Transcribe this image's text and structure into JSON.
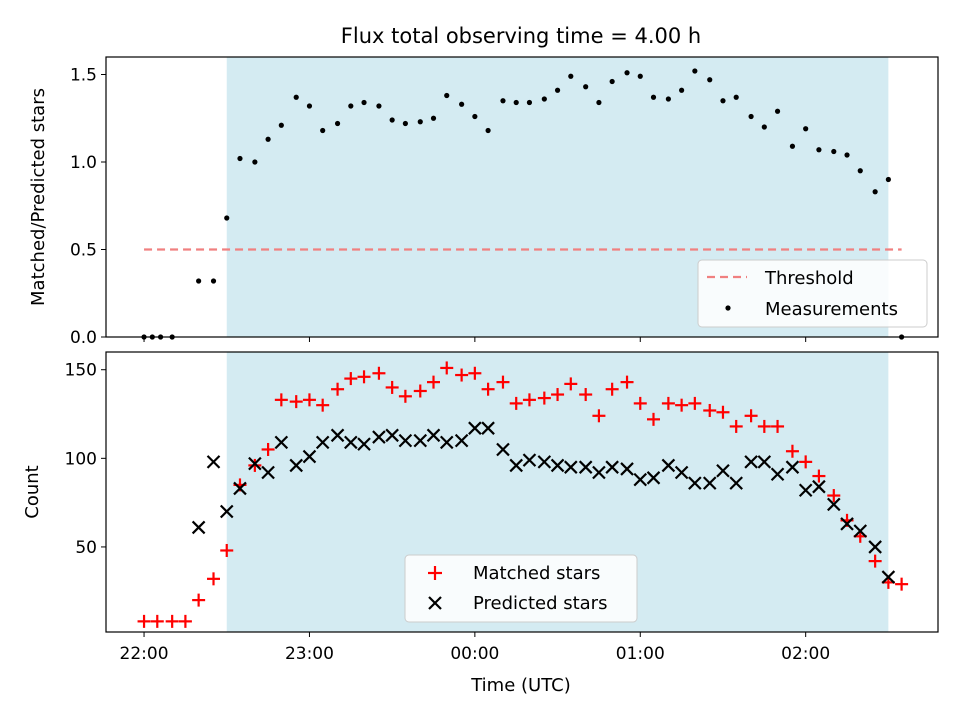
{
  "chart_data": {
    "title": "Flux total observing time = 4.00 h",
    "xlabel": "Time (UTC)",
    "x_units": "hours UTC",
    "x_ticks": [
      {
        "value": 22.0,
        "label": "22:00"
      },
      {
        "value": 23.0,
        "label": "23:00"
      },
      {
        "value": 24.0,
        "label": "00:00"
      },
      {
        "value": 25.0,
        "label": "01:00"
      },
      {
        "value": 26.0,
        "label": "02:00"
      }
    ],
    "xlim": [
      21.77,
      26.8
    ],
    "observing_window": {
      "start": 22.5,
      "end": 26.5,
      "color": "#add8e6"
    },
    "panels": [
      {
        "type": "scatter",
        "ylabel": "Matched/Predicted stars",
        "ylim": [
          0,
          1.6
        ],
        "y_ticks": [
          "0.0",
          "0.5",
          "1.0",
          "1.5"
        ],
        "y_tick_values": [
          0.0,
          0.5,
          1.0,
          1.5
        ],
        "threshold": {
          "name": "Threshold",
          "value": 0.5,
          "x_range": [
            22.0,
            26.58
          ],
          "color": "#f08080"
        },
        "legend": {
          "position": "lower-right",
          "entries": [
            "Threshold",
            "Measurements"
          ]
        },
        "series": [
          {
            "name": "Measurements",
            "color": "#000000",
            "marker": "dot",
            "points": [
              [
                22.0,
                0.0
              ],
              [
                22.05,
                0.0
              ],
              [
                22.1,
                0.0
              ],
              [
                22.17,
                0.0
              ],
              [
                22.33,
                0.32
              ],
              [
                22.42,
                0.32
              ],
              [
                22.5,
                0.68
              ],
              [
                22.58,
                1.02
              ],
              [
                22.67,
                1.0
              ],
              [
                22.75,
                1.13
              ],
              [
                22.83,
                1.21
              ],
              [
                22.92,
                1.37
              ],
              [
                23.0,
                1.32
              ],
              [
                23.08,
                1.18
              ],
              [
                23.17,
                1.22
              ],
              [
                23.25,
                1.32
              ],
              [
                23.33,
                1.34
              ],
              [
                23.42,
                1.32
              ],
              [
                23.5,
                1.24
              ],
              [
                23.58,
                1.22
              ],
              [
                23.67,
                1.23
              ],
              [
                23.75,
                1.25
              ],
              [
                23.83,
                1.38
              ],
              [
                23.92,
                1.33
              ],
              [
                24.0,
                1.26
              ],
              [
                24.08,
                1.18
              ],
              [
                24.17,
                1.35
              ],
              [
                24.25,
                1.34
              ],
              [
                24.33,
                1.34
              ],
              [
                24.42,
                1.36
              ],
              [
                24.5,
                1.41
              ],
              [
                24.58,
                1.49
              ],
              [
                24.67,
                1.43
              ],
              [
                24.75,
                1.34
              ],
              [
                24.83,
                1.46
              ],
              [
                24.92,
                1.51
              ],
              [
                25.0,
                1.49
              ],
              [
                25.08,
                1.37
              ],
              [
                25.17,
                1.36
              ],
              [
                25.25,
                1.41
              ],
              [
                25.33,
                1.52
              ],
              [
                25.42,
                1.47
              ],
              [
                25.5,
                1.35
              ],
              [
                25.58,
                1.37
              ],
              [
                25.67,
                1.26
              ],
              [
                25.75,
                1.2
              ],
              [
                25.83,
                1.29
              ],
              [
                25.92,
                1.09
              ],
              [
                26.0,
                1.19
              ],
              [
                26.08,
                1.07
              ],
              [
                26.17,
                1.06
              ],
              [
                26.25,
                1.04
              ],
              [
                26.33,
                0.95
              ],
              [
                26.42,
                0.83
              ],
              [
                26.5,
                0.9
              ],
              [
                26.58,
                0.0
              ]
            ]
          }
        ]
      },
      {
        "type": "scatter",
        "ylabel": "Count",
        "ylim": [
          2,
          160
        ],
        "y_ticks": [
          "50",
          "100",
          "150"
        ],
        "y_tick_values": [
          50,
          100,
          150
        ],
        "legend": {
          "position": "lower-center",
          "entries": [
            "Matched stars",
            "Predicted stars"
          ]
        },
        "series": [
          {
            "name": "Matched stars",
            "color": "#ff0000",
            "marker": "plus",
            "points": [
              [
                22.0,
                8
              ],
              [
                22.08,
                8
              ],
              [
                22.17,
                8
              ],
              [
                22.25,
                8
              ],
              [
                22.33,
                20
              ],
              [
                22.42,
                32
              ],
              [
                22.5,
                48
              ],
              [
                22.58,
                85
              ],
              [
                22.67,
                96
              ],
              [
                22.75,
                105
              ],
              [
                22.83,
                133
              ],
              [
                22.92,
                132
              ],
              [
                23.0,
                133
              ],
              [
                23.08,
                130
              ],
              [
                23.17,
                139
              ],
              [
                23.25,
                145
              ],
              [
                23.33,
                146
              ],
              [
                23.42,
                148
              ],
              [
                23.5,
                140
              ],
              [
                23.58,
                135
              ],
              [
                23.67,
                138
              ],
              [
                23.75,
                143
              ],
              [
                23.83,
                151
              ],
              [
                23.92,
                147
              ],
              [
                24.0,
                148
              ],
              [
                24.08,
                139
              ],
              [
                24.17,
                143
              ],
              [
                24.25,
                131
              ],
              [
                24.33,
                133
              ],
              [
                24.42,
                134
              ],
              [
                24.5,
                136
              ],
              [
                24.58,
                142
              ],
              [
                24.67,
                136
              ],
              [
                24.75,
                124
              ],
              [
                24.83,
                139
              ],
              [
                24.92,
                143
              ],
              [
                25.0,
                131
              ],
              [
                25.08,
                122
              ],
              [
                25.17,
                131
              ],
              [
                25.25,
                130
              ],
              [
                25.33,
                131
              ],
              [
                25.42,
                127
              ],
              [
                25.5,
                126
              ],
              [
                25.58,
                118
              ],
              [
                25.67,
                124
              ],
              [
                25.75,
                118
              ],
              [
                25.83,
                118
              ],
              [
                25.92,
                104
              ],
              [
                26.0,
                98
              ],
              [
                26.08,
                90
              ],
              [
                26.17,
                79
              ],
              [
                26.25,
                65
              ],
              [
                26.33,
                56
              ],
              [
                26.42,
                42
              ],
              [
                26.5,
                30
              ],
              [
                26.58,
                29
              ]
            ]
          },
          {
            "name": "Predicted stars",
            "color": "#000000",
            "marker": "x",
            "points": [
              [
                22.33,
                61
              ],
              [
                22.42,
                98
              ],
              [
                22.5,
                70
              ],
              [
                22.58,
                83
              ],
              [
                22.67,
                97
              ],
              [
                22.75,
                92
              ],
              [
                22.83,
                109
              ],
              [
                22.92,
                96
              ],
              [
                23.0,
                101
              ],
              [
                23.08,
                109
              ],
              [
                23.17,
                113
              ],
              [
                23.25,
                109
              ],
              [
                23.33,
                108
              ],
              [
                23.42,
                112
              ],
              [
                23.5,
                113
              ],
              [
                23.58,
                110
              ],
              [
                23.67,
                110
              ],
              [
                23.75,
                113
              ],
              [
                23.83,
                109
              ],
              [
                23.92,
                110
              ],
              [
                24.0,
                117
              ],
              [
                24.08,
                117
              ],
              [
                24.17,
                105
              ],
              [
                24.25,
                96
              ],
              [
                24.33,
                99
              ],
              [
                24.42,
                98
              ],
              [
                24.5,
                96
              ],
              [
                24.58,
                95
              ],
              [
                24.67,
                95
              ],
              [
                24.75,
                92
              ],
              [
                24.83,
                95
              ],
              [
                24.92,
                94
              ],
              [
                25.0,
                88
              ],
              [
                25.08,
                89
              ],
              [
                25.17,
                96
              ],
              [
                25.25,
                92
              ],
              [
                25.33,
                86
              ],
              [
                25.42,
                86
              ],
              [
                25.5,
                93
              ],
              [
                25.58,
                86
              ],
              [
                25.67,
                98
              ],
              [
                25.75,
                98
              ],
              [
                25.83,
                91
              ],
              [
                25.92,
                95
              ],
              [
                26.0,
                82
              ],
              [
                26.08,
                84
              ],
              [
                26.17,
                74
              ],
              [
                26.25,
                63
              ],
              [
                26.33,
                59
              ],
              [
                26.42,
                50
              ],
              [
                26.5,
                33
              ]
            ]
          }
        ]
      }
    ]
  }
}
